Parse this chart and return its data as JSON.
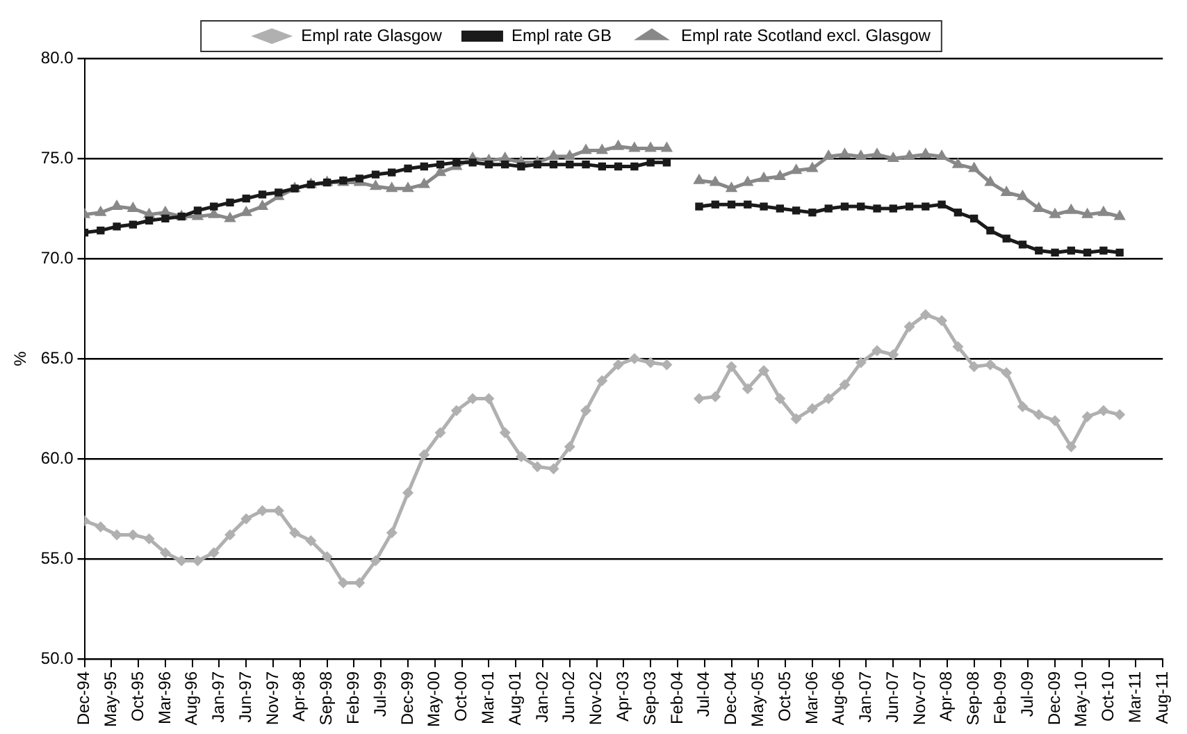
{
  "chart_data": {
    "type": "line",
    "ylabel": "%",
    "legend": "top",
    "grid": "y",
    "line_style": "solid",
    "x": [
      "1994-12",
      "1995-03",
      "1995-06",
      "1995-09",
      "1995-12",
      "1996-03",
      "1996-06",
      "1996-09",
      "1996-12",
      "1997-03",
      "1997-06",
      "1997-09",
      "1997-12",
      "1998-03",
      "1998-06",
      "1998-09",
      "1998-12",
      "1999-03",
      "1999-06",
      "1999-09",
      "1999-12",
      "2000-03",
      "2000-06",
      "2000-09",
      "2000-12",
      "2001-03",
      "2001-06",
      "2001-09",
      "2001-12",
      "2002-03",
      "2002-06",
      "2002-09",
      "2002-12",
      "2003-03",
      "2003-06",
      "2003-09",
      "2003-12",
      "2004-03",
      "2004-06",
      "2004-09",
      "2004-12",
      "2005-03",
      "2005-06",
      "2005-09",
      "2005-12",
      "2006-03",
      "2006-06",
      "2006-09",
      "2006-12",
      "2007-03",
      "2007-06",
      "2007-09",
      "2007-12",
      "2008-03",
      "2008-06",
      "2008-09",
      "2008-12",
      "2009-03",
      "2009-06",
      "2009-09",
      "2009-12",
      "2010-03",
      "2010-06",
      "2010-09",
      "2010-12"
    ],
    "series": [
      {
        "name": "Empl rate Glasgow",
        "color": "#b0b0b0",
        "marker": "diamond",
        "values": [
          56.9,
          56.6,
          56.2,
          56.2,
          56.0,
          55.3,
          54.9,
          54.9,
          55.3,
          56.2,
          57.0,
          57.4,
          57.4,
          56.3,
          55.9,
          55.1,
          53.8,
          53.8,
          54.9,
          56.3,
          58.3,
          60.2,
          61.3,
          62.4,
          63.0,
          63.0,
          61.3,
          60.1,
          59.6,
          59.5,
          60.6,
          62.4,
          63.9,
          64.7,
          65.0,
          64.8,
          64.7,
          null,
          63.0,
          63.1,
          64.6,
          63.5,
          64.4,
          63.0,
          62.0,
          62.5,
          63.0,
          63.7,
          64.8,
          65.4,
          65.2,
          66.6,
          67.2,
          66.9,
          65.6,
          64.6,
          64.7,
          64.3,
          62.6,
          62.2,
          61.9,
          60.6,
          62.1,
          62.4,
          62.2
        ]
      },
      {
        "name": "Empl rate GB",
        "color": "#1a1a1a",
        "marker": "square",
        "values": [
          71.3,
          71.4,
          71.6,
          71.7,
          71.9,
          72.0,
          72.1,
          72.4,
          72.6,
          72.8,
          73.0,
          73.2,
          73.3,
          73.5,
          73.7,
          73.8,
          73.9,
          74.0,
          74.2,
          74.3,
          74.5,
          74.6,
          74.7,
          74.8,
          74.8,
          74.7,
          74.7,
          74.6,
          74.7,
          74.7,
          74.7,
          74.7,
          74.6,
          74.6,
          74.6,
          74.8,
          74.8,
          null,
          72.6,
          72.7,
          72.7,
          72.7,
          72.6,
          72.5,
          72.4,
          72.3,
          72.5,
          72.6,
          72.6,
          72.5,
          72.5,
          72.6,
          72.6,
          72.7,
          72.3,
          72.0,
          71.4,
          71.0,
          70.7,
          70.4,
          70.3,
          70.4,
          70.3,
          70.4,
          70.3
        ]
      },
      {
        "name": "Empl rate Scotland excl. Glasgow",
        "color": "#888888",
        "marker": "triangle",
        "values": [
          72.2,
          72.3,
          72.6,
          72.5,
          72.2,
          72.3,
          72.1,
          72.1,
          72.2,
          72.0,
          72.3,
          72.6,
          73.1,
          73.5,
          73.7,
          73.8,
          73.8,
          73.8,
          73.6,
          73.5,
          73.5,
          73.7,
          74.3,
          74.6,
          75.0,
          74.9,
          75.0,
          74.8,
          74.8,
          75.1,
          75.1,
          75.4,
          75.4,
          75.6,
          75.5,
          75.5,
          75.5,
          null,
          73.9,
          73.8,
          73.5,
          73.8,
          74.0,
          74.1,
          74.4,
          74.5,
          75.1,
          75.2,
          75.1,
          75.2,
          75.0,
          75.1,
          75.2,
          75.1,
          74.7,
          74.5,
          73.8,
          73.3,
          73.1,
          72.5,
          72.2,
          72.4,
          72.2,
          72.3,
          72.1
        ]
      }
    ],
    "ylim": [
      50,
      80
    ],
    "yticks": [
      {
        "value": 50,
        "label": "50.0"
      },
      {
        "value": 55,
        "label": "55.0"
      },
      {
        "value": 60,
        "label": "60.0"
      },
      {
        "value": 65,
        "label": "65.0"
      },
      {
        "value": 70,
        "label": "70.0"
      },
      {
        "value": 75,
        "label": "75.0"
      },
      {
        "value": 80,
        "label": "80.0"
      }
    ],
    "xlim": [
      "1994-12",
      "2011-08"
    ],
    "xticks": [
      {
        "value": "1994-12",
        "label": "Dec-94"
      },
      {
        "value": "1995-05",
        "label": "May-95"
      },
      {
        "value": "1995-10",
        "label": "Oct-95"
      },
      {
        "value": "1996-03",
        "label": "Mar-96"
      },
      {
        "value": "1996-08",
        "label": "Aug-96"
      },
      {
        "value": "1997-01",
        "label": "Jan-97"
      },
      {
        "value": "1997-06",
        "label": "Jun-97"
      },
      {
        "value": "1997-11",
        "label": "Nov-97"
      },
      {
        "value": "1998-04",
        "label": "Apr-98"
      },
      {
        "value": "1998-09",
        "label": "Sep-98"
      },
      {
        "value": "1999-02",
        "label": "Feb-99"
      },
      {
        "value": "1999-07",
        "label": "Jul-99"
      },
      {
        "value": "1999-12",
        "label": "Dec-99"
      },
      {
        "value": "2000-05",
        "label": "May-00"
      },
      {
        "value": "2000-10",
        "label": "Oct-00"
      },
      {
        "value": "2001-03",
        "label": "Mar-01"
      },
      {
        "value": "2001-08",
        "label": "Aug-01"
      },
      {
        "value": "2002-01",
        "label": "Jan-02"
      },
      {
        "value": "2002-06",
        "label": "Jun-02"
      },
      {
        "value": "2002-11",
        "label": "Nov-02"
      },
      {
        "value": "2003-04",
        "label": "Apr-03"
      },
      {
        "value": "2003-09",
        "label": "Sep-03"
      },
      {
        "value": "2004-02",
        "label": "Feb-04"
      },
      {
        "value": "2004-07",
        "label": "Jul-04"
      },
      {
        "value": "2004-12",
        "label": "Dec-04"
      },
      {
        "value": "2005-05",
        "label": "May-05"
      },
      {
        "value": "2005-10",
        "label": "Oct-05"
      },
      {
        "value": "2006-03",
        "label": "Mar-06"
      },
      {
        "value": "2006-08",
        "label": "Aug-06"
      },
      {
        "value": "2007-01",
        "label": "Jan-07"
      },
      {
        "value": "2007-06",
        "label": "Jun-07"
      },
      {
        "value": "2007-11",
        "label": "Nov-07"
      },
      {
        "value": "2008-04",
        "label": "Apr-08"
      },
      {
        "value": "2008-09",
        "label": "Sep-08"
      },
      {
        "value": "2009-02",
        "label": "Feb-09"
      },
      {
        "value": "2009-07",
        "label": "Jul-09"
      },
      {
        "value": "2009-12",
        "label": "Dec-09"
      },
      {
        "value": "2010-05",
        "label": "May-10"
      },
      {
        "value": "2010-10",
        "label": "Oct-10"
      },
      {
        "value": "2011-03",
        "label": "Mar-11"
      },
      {
        "value": "2011-08",
        "label": "Aug-11"
      }
    ]
  }
}
